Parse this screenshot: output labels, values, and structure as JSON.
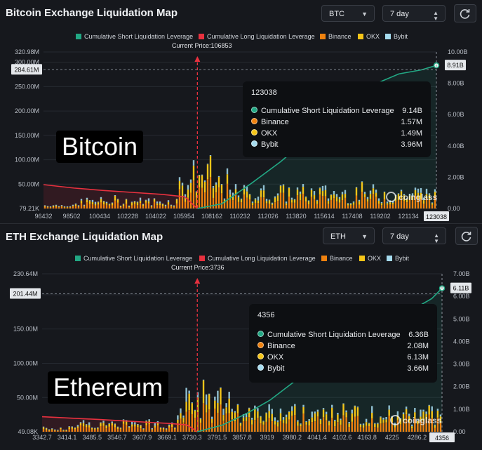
{
  "colors": {
    "cumShort": "#22a884",
    "cumLong": "#e8313f",
    "binance": "#f0820f",
    "okx": "#f5c518",
    "bybit": "#a6dcef",
    "bg": "#16181d"
  },
  "legend": [
    "Cumulative Short Liquidation Leverage",
    "Cumulative Long Liquidation Leverage",
    "Binance",
    "OKX",
    "Bybit"
  ],
  "btc": {
    "title": "Bitcoin Exchange Liquidation Map",
    "symbol": "BTC",
    "period": "7 day",
    "refresh_icon": "refresh-icon",
    "current_price_label": "Current Price:106853",
    "big_label": "Bitcoin",
    "watermark": "coinglass",
    "tooltip": {
      "header": "123038",
      "rows": [
        {
          "label": "Cumulative Short Liquidation Leverage",
          "value": "9.14B"
        },
        {
          "label": "Binance",
          "value": "1.57M"
        },
        {
          "label": "OKX",
          "value": "1.49M"
        },
        {
          "label": "Bybit",
          "value": "3.96M"
        }
      ]
    }
  },
  "eth": {
    "title": "ETH Exchange Liquidation Map",
    "symbol": "ETH",
    "period": "7 day",
    "refresh_icon": "refresh-icon",
    "current_price_label": "Current Price:3736",
    "big_label": "Ethereum",
    "watermark": "coinglass",
    "tooltip": {
      "header": "4356",
      "rows": [
        {
          "label": "Cumulative Short Liquidation Leverage",
          "value": "6.36B"
        },
        {
          "label": "Binance",
          "value": "2.08M"
        },
        {
          "label": "OKX",
          "value": "6.13M"
        },
        {
          "label": "Bybit",
          "value": "3.66M"
        }
      ]
    }
  },
  "chart_data": [
    {
      "type": "bar",
      "title": "Bitcoin Exchange Liquidation Map",
      "series": [
        {
          "name": "Binance"
        },
        {
          "name": "OKX"
        },
        {
          "name": "Bybit"
        },
        {
          "name": "Cumulative Short Liquidation Leverage"
        },
        {
          "name": "Cumulative Long Liquidation Leverage"
        }
      ],
      "x_ticks": [
        "96432",
        "98502",
        "100434",
        "102228",
        "104022",
        "105954",
        "108162",
        "110232",
        "112026",
        "113820",
        "115614",
        "117408",
        "119202",
        "121134",
        "123038"
      ],
      "xlim": [
        96432,
        123038
      ],
      "current_price": 106853,
      "y_left_ticks": [
        "79.21K",
        "50.00M",
        "100.00M",
        "150.00M",
        "200.00M",
        "250.00M",
        "300.00M",
        "320.98M"
      ],
      "y_left_marker": "284.61M",
      "ylim_left": [
        0.07921,
        320.98
      ],
      "y_right_ticks": [
        "0.00",
        "2.00B",
        "4.00B",
        "6.00B",
        "8.00B",
        "10.00B"
      ],
      "y_right_marker": "8.91B",
      "ylim_right": [
        0,
        10
      ],
      "x_end_marker": "123038",
      "cum_short": {
        "x": [
          106853,
          108500,
          110500,
          112500,
          114500,
          116500,
          118500,
          120500,
          122000,
          123038
        ],
        "y": [
          0,
          0.3,
          1.6,
          3.0,
          4.6,
          6.3,
          7.8,
          8.6,
          8.85,
          9.14
        ]
      },
      "cum_long": {
        "x": [
          96432,
          98500,
          100500,
          102500,
          104500,
          106000,
          106853
        ],
        "y": [
          49,
          42,
          37,
          33,
          29,
          24,
          0
        ]
      },
      "tooltip_point": {
        "x": 123038,
        "cum_short": 9.14,
        "binance": 1.57,
        "okx": 1.49,
        "bybit": 3.96
      }
    },
    {
      "type": "bar",
      "title": "ETH Exchange Liquidation Map",
      "series": [
        {
          "name": "Binance"
        },
        {
          "name": "OKX"
        },
        {
          "name": "Bybit"
        },
        {
          "name": "Cumulative Short Liquidation Leverage"
        },
        {
          "name": "Cumulative Long Liquidation Leverage"
        }
      ],
      "x_ticks": [
        "3342.7",
        "3414.1",
        "3485.5",
        "3546.7",
        "3607.9",
        "3669.1",
        "3730.3",
        "3791.5",
        "3857.8",
        "3919",
        "3980.2",
        "4041.4",
        "4102.6",
        "4163.8",
        "4225",
        "4286.2",
        "4356"
      ],
      "xlim": [
        3342.7,
        4356
      ],
      "current_price": 3736,
      "y_left_ticks": [
        "49.08K",
        "50.00M",
        "100.00M",
        "150.00M",
        "200.00M",
        "230.64M"
      ],
      "y_left_marker": "201.44M",
      "ylim_left": [
        0.04908,
        230.64
      ],
      "y_right_ticks": [
        "0.00",
        "1.00B",
        "2.00B",
        "3.00B",
        "4.00B",
        "5.00B",
        "6.00B",
        "7.00B"
      ],
      "y_right_marker": "6.11B",
      "ylim_right": [
        0,
        7
      ],
      "x_end_marker": "4356",
      "cum_short": {
        "x": [
          3736,
          3800,
          3860,
          3920,
          3980,
          4040,
          4100,
          4160,
          4225,
          4290,
          4330,
          4356
        ],
        "y": [
          0,
          0.3,
          0.8,
          1.4,
          2.2,
          3.0,
          3.8,
          4.5,
          5.0,
          5.5,
          5.9,
          6.36
        ]
      },
      "cum_long": {
        "x": [
          3342.7,
          3414,
          3485,
          3547,
          3608,
          3669,
          3710,
          3736
        ],
        "y": [
          22,
          20,
          18,
          16,
          14,
          12,
          10,
          0
        ]
      },
      "tooltip_point": {
        "x": 4356,
        "cum_short": 6.36,
        "binance": 2.08,
        "okx": 6.13,
        "bybit": 3.66
      }
    }
  ]
}
